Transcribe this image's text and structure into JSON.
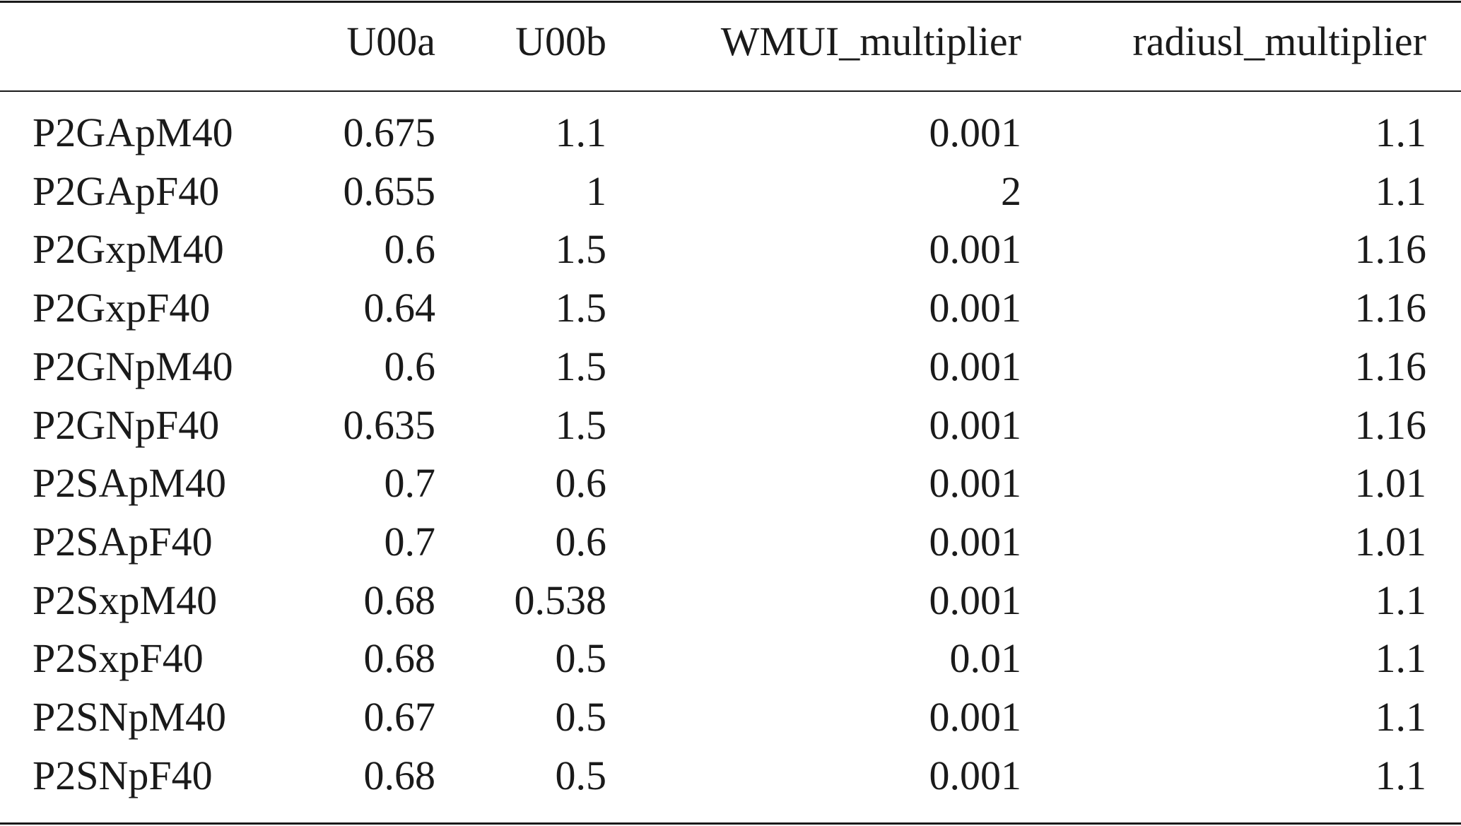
{
  "table": {
    "columns": [
      "U00a",
      "U00b",
      "WMUI_multiplier",
      "radiusl_multiplier"
    ],
    "rows": [
      [
        "P2GApM40",
        "0.675",
        "1.1",
        "0.001",
        "1.1"
      ],
      [
        "P2GApF40",
        "0.655",
        "1",
        "2",
        "1.1"
      ],
      [
        "P2GxpM40",
        "0.6",
        "1.5",
        "0.001",
        "1.16"
      ],
      [
        "P2GxpF40",
        "0.64",
        "1.5",
        "0.001",
        "1.16"
      ],
      [
        "P2GNpM40",
        "0.6",
        "1.5",
        "0.001",
        "1.16"
      ],
      [
        "P2GNpF40",
        "0.635",
        "1.5",
        "0.001",
        "1.16"
      ],
      [
        "P2SApM40",
        "0.7",
        "0.6",
        "0.001",
        "1.01"
      ],
      [
        "P2SApF40",
        "0.7",
        "0.6",
        "0.001",
        "1.01"
      ],
      [
        "P2SxpM40",
        "0.68",
        "0.538",
        "0.001",
        "1.1"
      ],
      [
        "P2SxpF40",
        "0.68",
        "0.5",
        "0.01",
        "1.1"
      ],
      [
        "P2SNpM40",
        "0.67",
        "0.5",
        "0.001",
        "1.1"
      ],
      [
        "P2SNpF40",
        "0.68",
        "0.5",
        "0.001",
        "1.1"
      ]
    ]
  }
}
